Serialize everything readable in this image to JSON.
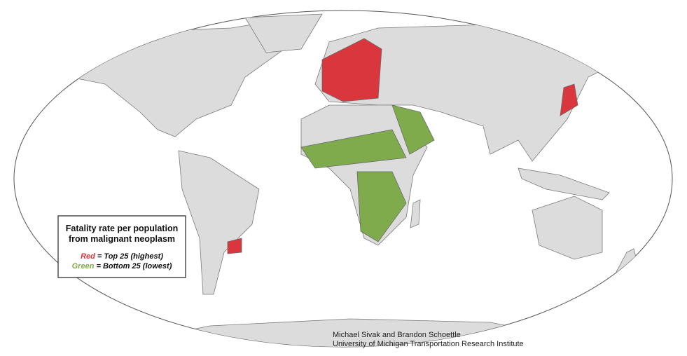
{
  "legend": {
    "title_lines": [
      "Fatality rate per population",
      "from malignant neoplasm"
    ],
    "items": [
      {
        "color_word": "Red",
        "text": " = Top 25 (highest)",
        "color": "#d9363e"
      },
      {
        "color_word": "Green",
        "text": " = Bottom 25 (lowest)",
        "color": "#7fab4c"
      }
    ]
  },
  "credit": [
    "Michael Sivak and Brandon Schoettle",
    "University of Michigan Transportation Research Institute"
  ]
}
